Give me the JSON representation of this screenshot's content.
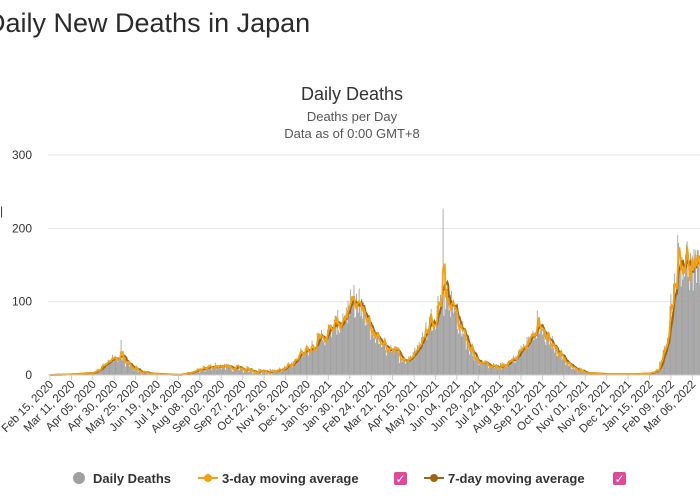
{
  "page": {
    "heading": "Daily New Deaths in Japan"
  },
  "colors": {
    "bars": "#a0a0a0",
    "ma3": "#f5a00f",
    "ma7": "#a0650e",
    "checkbox": "#e2479a",
    "grid": "#e6e6e6"
  },
  "chart_data": {
    "type": "bar",
    "title": "Daily Deaths",
    "subtitle_lines": [
      "Deaths per Day",
      "Data as of 0:00 GMT+8"
    ],
    "xlabel": "",
    "ylabel": "Deaths per Day",
    "ylim": [
      0,
      300
    ],
    "y_ticks": [
      0,
      100,
      200,
      300
    ],
    "grid": true,
    "date_range": [
      "2020-02-15",
      "2022-03-15"
    ],
    "x_tick_labels": [
      "Feb 15, 2020",
      "Mar 11, 2020",
      "Apr 05, 2020",
      "Apr 30, 2020",
      "May 25, 2020",
      "Jun 19, 2020",
      "Jul 14, 2020",
      "Aug 08, 2020",
      "Sep 02, 2020",
      "Sep 27, 2020",
      "Oct 22, 2020",
      "Nov 16, 2020",
      "Dec 11, 2020",
      "Jan 05, 2021",
      "Jan 30, 2021",
      "Feb 24, 2021",
      "Mar 21, 2021",
      "Apr 15, 2021",
      "May 10, 2021",
      "Jun 04, 2021",
      "Jun 29, 2021",
      "Jul 24, 2021",
      "Aug 18, 2021",
      "Sep 12, 2021",
      "Oct 07, 2021",
      "Nov 01, 2021",
      "Nov 26, 2021",
      "Dec 21, 2021",
      "Jan 15, 2022",
      "Feb 09, 2022",
      "Mar 06, 2022"
    ],
    "series": [
      {
        "name": "Daily Deaths",
        "kind": "bar",
        "anchors": [
          [
            "2020-02-15",
            0
          ],
          [
            "2020-03-11",
            1
          ],
          [
            "2020-04-05",
            3
          ],
          [
            "2020-04-20",
            15
          ],
          [
            "2020-04-30",
            22
          ],
          [
            "2020-05-10",
            20
          ],
          [
            "2020-05-25",
            8
          ],
          [
            "2020-06-10",
            2
          ],
          [
            "2020-07-14",
            0
          ],
          [
            "2020-08-08",
            6
          ],
          [
            "2020-08-25",
            13
          ],
          [
            "2020-09-15",
            10
          ],
          [
            "2020-10-10",
            6
          ],
          [
            "2020-10-30",
            5
          ],
          [
            "2020-11-16",
            8
          ],
          [
            "2020-12-05",
            30
          ],
          [
            "2020-12-25",
            48
          ],
          [
            "2021-01-15",
            68
          ],
          [
            "2021-01-30",
            90
          ],
          [
            "2021-02-05",
            98
          ],
          [
            "2021-02-15",
            80
          ],
          [
            "2021-02-24",
            62
          ],
          [
            "2021-03-10",
            40
          ],
          [
            "2021-03-21",
            35
          ],
          [
            "2021-04-05",
            20
          ],
          [
            "2021-04-15",
            28
          ],
          [
            "2021-04-25",
            50
          ],
          [
            "2021-05-10",
            88
          ],
          [
            "2021-05-20",
            108
          ],
          [
            "2021-05-28",
            100
          ],
          [
            "2021-06-04",
            80
          ],
          [
            "2021-06-15",
            45
          ],
          [
            "2021-06-29",
            20
          ],
          [
            "2021-07-10",
            12
          ],
          [
            "2021-07-24",
            10
          ],
          [
            "2021-08-08",
            20
          ],
          [
            "2021-08-25",
            42
          ],
          [
            "2021-09-05",
            62
          ],
          [
            "2021-09-12",
            60
          ],
          [
            "2021-09-25",
            40
          ],
          [
            "2021-10-07",
            20
          ],
          [
            "2021-10-20",
            8
          ],
          [
            "2021-11-01",
            3
          ],
          [
            "2021-11-26",
            1
          ],
          [
            "2021-12-21",
            1
          ],
          [
            "2022-01-15",
            2
          ],
          [
            "2022-01-25",
            6
          ],
          [
            "2022-02-01",
            30
          ],
          [
            "2022-02-09",
            90
          ],
          [
            "2022-02-15",
            150
          ],
          [
            "2022-02-22",
            165
          ],
          [
            "2022-03-06",
            140
          ],
          [
            "2022-03-15",
            135
          ]
        ],
        "spikes": [
          [
            "2020-05-08",
            48
          ],
          [
            "2021-05-19",
            227
          ],
          [
            "2021-05-21",
            148
          ],
          [
            "2021-09-06",
            88
          ],
          [
            "2021-02-10",
            118
          ],
          [
            "2022-02-18",
            180
          ]
        ]
      },
      {
        "name": "3-day moving average",
        "kind": "line",
        "checked": true
      },
      {
        "name": "7-day moving average",
        "kind": "line",
        "checked": true
      }
    ]
  },
  "legend": {
    "daily": "Daily Deaths",
    "ma3": "3-day moving average",
    "ma7": "7-day moving average",
    "check_glyph": "✓"
  }
}
